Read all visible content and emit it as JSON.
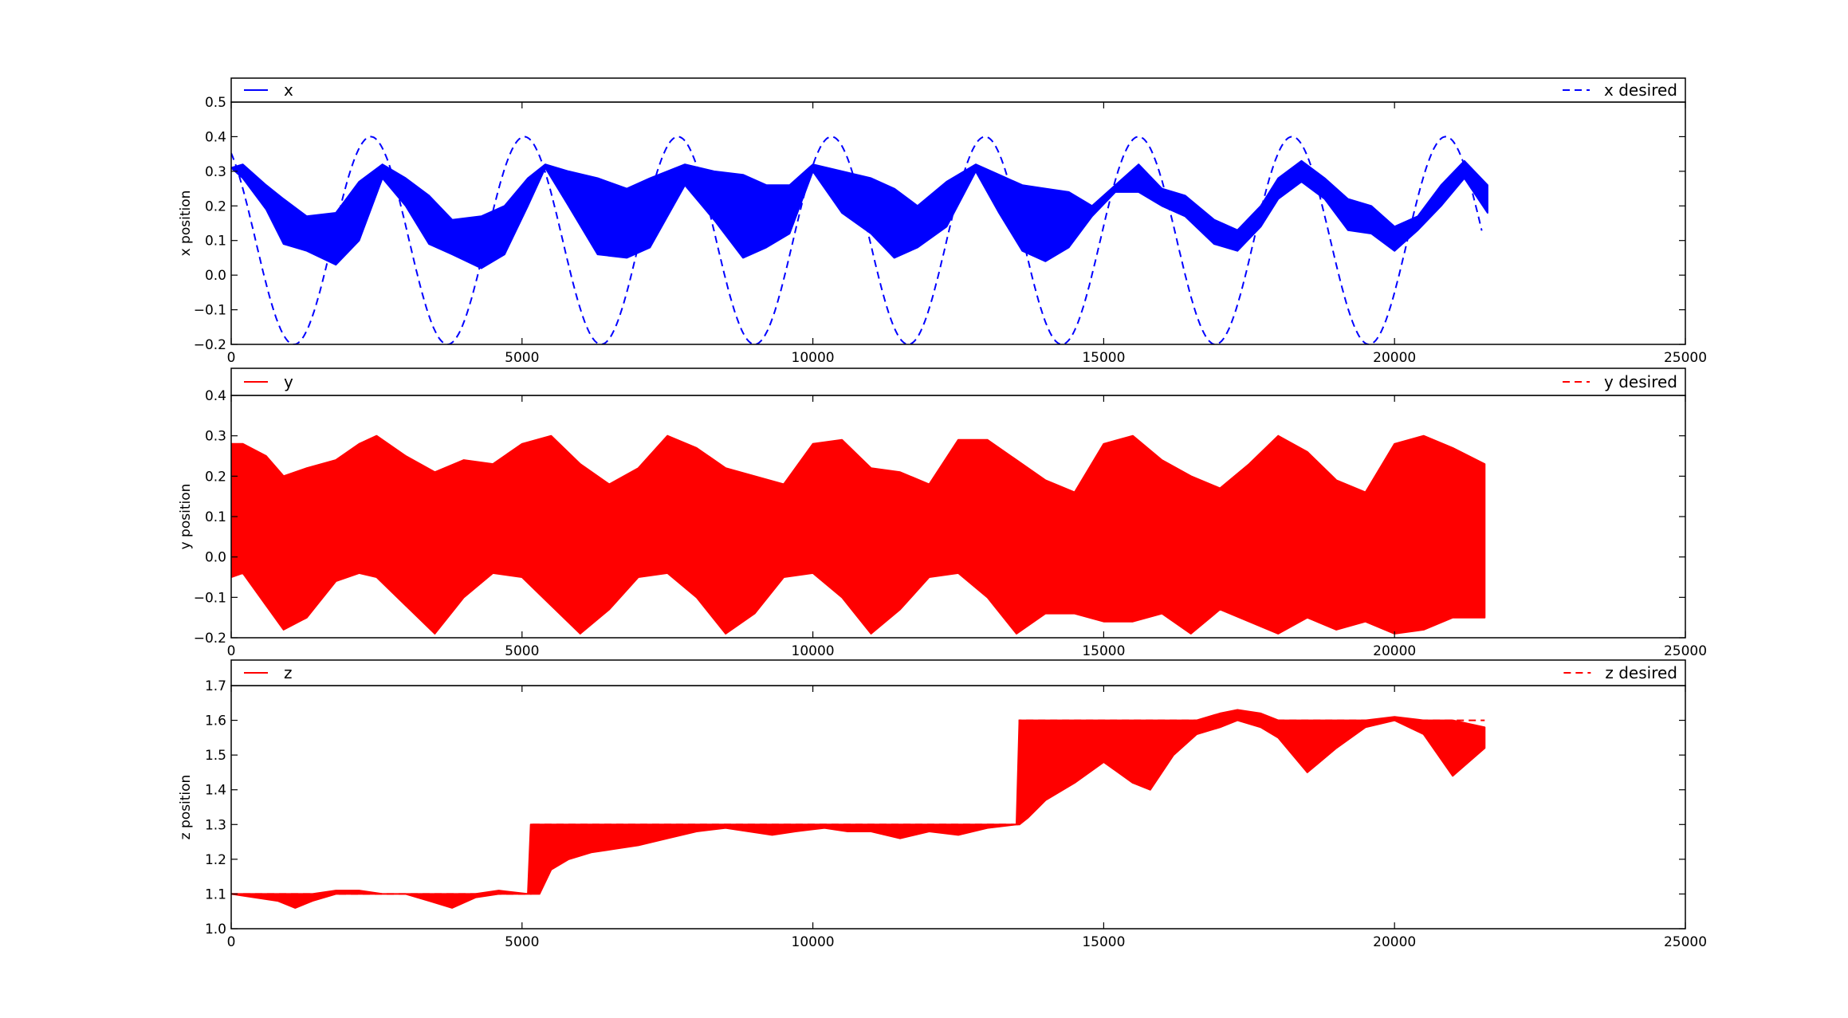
{
  "figure": {
    "background": "#ffffff"
  },
  "chart_data": [
    {
      "type": "line",
      "id": "x",
      "title": "",
      "xlabel": "",
      "ylabel": "x position",
      "xlim": [
        0,
        25000
      ],
      "ylim": [
        -0.2,
        0.5
      ],
      "xticks": [
        0,
        5000,
        10000,
        15000,
        20000,
        25000
      ],
      "yticks": [
        -0.2,
        -0.1,
        0.0,
        0.1,
        0.2,
        0.3,
        0.4,
        0.5
      ],
      "ytick_labels": [
        "−0.2",
        "−0.1",
        "0.0",
        "0.1",
        "0.2",
        "0.3",
        "0.4",
        "0.5"
      ],
      "grid": false,
      "legend": {
        "left": "x",
        "right": "x desired"
      },
      "series": [
        {
          "name": "x",
          "style": "solid",
          "color": "#0000ff",
          "kind": "band",
          "x": [
            0,
            200,
            600,
            900,
            1300,
            1800,
            2200,
            2600,
            3000,
            3400,
            3800,
            4300,
            4700,
            5100,
            5400,
            5800,
            6300,
            6800,
            7200,
            7800,
            8300,
            8800,
            9200,
            9600,
            10000,
            10500,
            11000,
            11400,
            11800,
            12300,
            12800,
            13200,
            13600,
            14000,
            14400,
            14800,
            15200,
            15600,
            16000,
            16400,
            16900,
            17300,
            17700,
            18000,
            18400,
            18800,
            19200,
            19600,
            20000,
            20400,
            20800,
            21200,
            21600
          ],
          "upper": [
            0.31,
            0.32,
            0.26,
            0.22,
            0.17,
            0.18,
            0.27,
            0.32,
            0.28,
            0.23,
            0.16,
            0.17,
            0.2,
            0.28,
            0.32,
            0.3,
            0.28,
            0.25,
            0.28,
            0.32,
            0.3,
            0.29,
            0.26,
            0.26,
            0.32,
            0.3,
            0.28,
            0.25,
            0.2,
            0.27,
            0.32,
            0.29,
            0.26,
            0.25,
            0.24,
            0.2,
            0.26,
            0.32,
            0.25,
            0.23,
            0.16,
            0.13,
            0.2,
            0.28,
            0.33,
            0.28,
            0.22,
            0.2,
            0.14,
            0.17,
            0.26,
            0.33,
            0.26
          ],
          "lower": [
            0.31,
            0.28,
            0.19,
            0.09,
            0.07,
            0.03,
            0.1,
            0.28,
            0.2,
            0.09,
            0.06,
            0.02,
            0.06,
            0.2,
            0.31,
            0.2,
            0.06,
            0.05,
            0.08,
            0.26,
            0.16,
            0.05,
            0.08,
            0.12,
            0.3,
            0.18,
            0.12,
            0.05,
            0.08,
            0.14,
            0.3,
            0.18,
            0.07,
            0.04,
            0.08,
            0.17,
            0.24,
            0.24,
            0.2,
            0.17,
            0.09,
            0.07,
            0.14,
            0.22,
            0.27,
            0.22,
            0.13,
            0.12,
            0.07,
            0.13,
            0.2,
            0.28,
            0.18
          ]
        },
        {
          "name": "x desired",
          "style": "dashed",
          "color": "#0000ff",
          "kind": "sine",
          "x_start": 0,
          "x_end": 21500,
          "center": 0.1,
          "amplitude": 0.3,
          "period": 2640,
          "peak_at": 2400
        }
      ]
    },
    {
      "type": "line",
      "id": "y",
      "title": "",
      "xlabel": "",
      "ylabel": "y position",
      "xlim": [
        0,
        25000
      ],
      "ylim": [
        -0.2,
        0.4
      ],
      "xticks": [
        0,
        5000,
        10000,
        15000,
        20000,
        25000
      ],
      "yticks": [
        -0.2,
        -0.1,
        0.0,
        0.1,
        0.2,
        0.3,
        0.4
      ],
      "ytick_labels": [
        "−0.2",
        "−0.1",
        "0.0",
        "0.1",
        "0.2",
        "0.3",
        "0.4"
      ],
      "grid": false,
      "legend": {
        "left": "y",
        "right": "y desired"
      },
      "series": [
        {
          "name": "y",
          "style": "solid",
          "color": "#ff0000",
          "kind": "band",
          "x": [
            0,
            200,
            600,
            900,
            1300,
            1800,
            2200,
            2500,
            3000,
            3500,
            4000,
            4500,
            5000,
            5500,
            6000,
            6500,
            7000,
            7500,
            8000,
            8500,
            9000,
            9500,
            10000,
            10500,
            11000,
            11500,
            12000,
            12500,
            13000,
            13500,
            14000,
            14500,
            15000,
            15500,
            16000,
            16500,
            17000,
            17500,
            18000,
            18500,
            19000,
            19500,
            20000,
            20500,
            21000,
            21550
          ],
          "upper": [
            0.28,
            0.28,
            0.25,
            0.2,
            0.22,
            0.24,
            0.28,
            0.3,
            0.25,
            0.21,
            0.24,
            0.23,
            0.28,
            0.3,
            0.23,
            0.18,
            0.22,
            0.3,
            0.27,
            0.22,
            0.2,
            0.18,
            0.28,
            0.29,
            0.22,
            0.21,
            0.18,
            0.29,
            0.29,
            0.24,
            0.19,
            0.16,
            0.28,
            0.3,
            0.24,
            0.2,
            0.17,
            0.23,
            0.3,
            0.26,
            0.19,
            0.16,
            0.28,
            0.3,
            0.27,
            0.23
          ],
          "lower": [
            -0.05,
            -0.04,
            -0.12,
            -0.18,
            -0.15,
            -0.06,
            -0.04,
            -0.05,
            -0.12,
            -0.19,
            -0.1,
            -0.04,
            -0.05,
            -0.12,
            -0.19,
            -0.13,
            -0.05,
            -0.04,
            -0.1,
            -0.19,
            -0.14,
            -0.05,
            -0.04,
            -0.1,
            -0.19,
            -0.13,
            -0.05,
            -0.04,
            -0.1,
            -0.19,
            -0.14,
            -0.14,
            -0.16,
            -0.16,
            -0.14,
            -0.19,
            -0.13,
            -0.16,
            -0.19,
            -0.15,
            -0.18,
            -0.16,
            -0.19,
            -0.18,
            -0.15,
            -0.15
          ]
        },
        {
          "name": "y desired",
          "style": "dashed",
          "color": "#ff0000",
          "kind": "none"
        }
      ]
    },
    {
      "type": "line",
      "id": "z",
      "title": "",
      "xlabel": "",
      "ylabel": "z position",
      "xlim": [
        0,
        25000
      ],
      "ylim": [
        1.0,
        1.7
      ],
      "xticks": [
        0,
        5000,
        10000,
        15000,
        20000,
        25000
      ],
      "yticks": [
        1.0,
        1.1,
        1.2,
        1.3,
        1.4,
        1.5,
        1.6,
        1.7
      ],
      "ytick_labels": [
        "1.0",
        "1.1",
        "1.2",
        "1.3",
        "1.4",
        "1.5",
        "1.6",
        "1.7"
      ],
      "grid": false,
      "legend": {
        "left": "z",
        "right": "z desired"
      },
      "series": [
        {
          "name": "z",
          "style": "solid",
          "color": "#ff0000",
          "kind": "band",
          "x": [
            0,
            400,
            800,
            1100,
            1400,
            1800,
            2200,
            2600,
            3000,
            3400,
            3800,
            4200,
            4600,
            5100,
            5150,
            5300,
            5500,
            5800,
            6200,
            6600,
            7000,
            7500,
            8000,
            8500,
            8900,
            9300,
            9700,
            10200,
            10600,
            11000,
            11500,
            12000,
            12500,
            13000,
            13500,
            13550,
            13700,
            14000,
            14500,
            15000,
            15500,
            15800,
            16200,
            16600,
            17000,
            17300,
            17700,
            18000,
            18500,
            19000,
            19500,
            20000,
            20500,
            21000,
            21550
          ],
          "upper": [
            1.1,
            1.1,
            1.1,
            1.1,
            1.1,
            1.11,
            1.11,
            1.1,
            1.1,
            1.1,
            1.1,
            1.1,
            1.11,
            1.1,
            1.3,
            1.3,
            1.3,
            1.3,
            1.3,
            1.3,
            1.3,
            1.3,
            1.3,
            1.3,
            1.3,
            1.3,
            1.3,
            1.3,
            1.3,
            1.3,
            1.3,
            1.3,
            1.3,
            1.3,
            1.3,
            1.6,
            1.6,
            1.6,
            1.6,
            1.6,
            1.6,
            1.6,
            1.6,
            1.6,
            1.62,
            1.63,
            1.62,
            1.6,
            1.6,
            1.6,
            1.6,
            1.61,
            1.6,
            1.6,
            1.58
          ],
          "lower": [
            1.1,
            1.09,
            1.08,
            1.06,
            1.08,
            1.1,
            1.1,
            1.1,
            1.1,
            1.08,
            1.06,
            1.09,
            1.1,
            1.1,
            1.1,
            1.1,
            1.17,
            1.2,
            1.22,
            1.23,
            1.24,
            1.26,
            1.28,
            1.29,
            1.28,
            1.27,
            1.28,
            1.29,
            1.28,
            1.28,
            1.26,
            1.28,
            1.27,
            1.29,
            1.3,
            1.3,
            1.32,
            1.37,
            1.42,
            1.48,
            1.42,
            1.4,
            1.5,
            1.56,
            1.58,
            1.6,
            1.58,
            1.55,
            1.45,
            1.52,
            1.58,
            1.6,
            1.56,
            1.44,
            1.52
          ]
        },
        {
          "name": "z desired",
          "style": "dashed",
          "color": "#ff0000",
          "kind": "step",
          "steps": [
            [
              0,
              1.1
            ],
            [
              5150,
              1.3
            ],
            [
              13550,
              1.6
            ],
            [
              21550,
              1.6
            ]
          ]
        }
      ]
    }
  ]
}
